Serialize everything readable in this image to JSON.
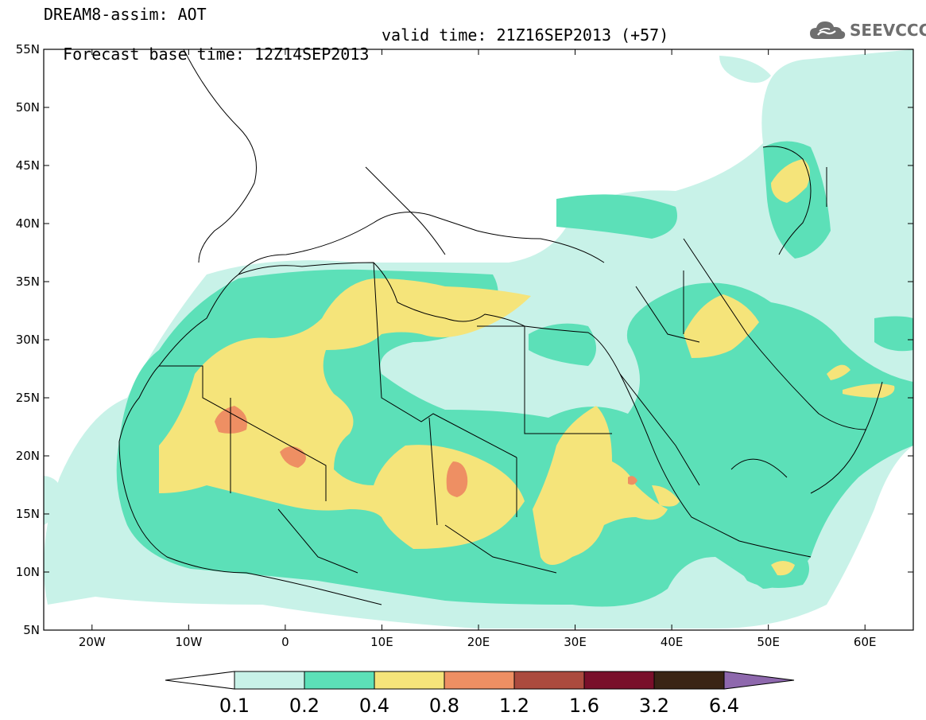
{
  "header": {
    "model_line": "DREAM8-assim: AOT",
    "base_time": "Forecast base time: 12Z14SEP2013",
    "valid_time": "valid time: 21Z16SEP2013 (+57)",
    "logo_text": "SEEVCCC",
    "logo_icon": "cloud-icon"
  },
  "map": {
    "projection": "cylindrical lat-lon",
    "lon_range": [
      -25,
      65
    ],
    "lat_range": [
      5,
      55
    ],
    "lat_ticks": [
      {
        "value": 55,
        "label": "55N"
      },
      {
        "value": 50,
        "label": "50N"
      },
      {
        "value": 45,
        "label": "45N"
      },
      {
        "value": 40,
        "label": "40N"
      },
      {
        "value": 35,
        "label": "35N"
      },
      {
        "value": 30,
        "label": "30N"
      },
      {
        "value": 25,
        "label": "25N"
      },
      {
        "value": 20,
        "label": "20N"
      },
      {
        "value": 15,
        "label": "15N"
      },
      {
        "value": 10,
        "label": "10N"
      },
      {
        "value": 5,
        "label": "5N"
      }
    ],
    "lon_ticks": [
      {
        "value": -20,
        "label": "20W"
      },
      {
        "value": -10,
        "label": "10W"
      },
      {
        "value": 0,
        "label": "0"
      },
      {
        "value": 10,
        "label": "10E"
      },
      {
        "value": 20,
        "label": "20E"
      },
      {
        "value": 30,
        "label": "30E"
      },
      {
        "value": 40,
        "label": "40E"
      },
      {
        "value": 50,
        "label": "50E"
      },
      {
        "value": 60,
        "label": "60E"
      }
    ],
    "field_hotspots": [
      {
        "name": "western-sahara-max",
        "lon": -5.5,
        "lat": 23.5,
        "level": "0.8-1.2"
      },
      {
        "name": "mali-algeria-max",
        "lon": 1,
        "lat": 20,
        "level": "0.8-1.2"
      },
      {
        "name": "chad-max",
        "lon": 17.5,
        "lat": 18,
        "level": "0.8-1.2"
      },
      {
        "name": "sudan-max",
        "lon": 36,
        "lat": 18,
        "level": "0.8-1.2"
      }
    ]
  },
  "colorbar": {
    "levels": [
      "0.1",
      "0.2",
      "0.4",
      "0.8",
      "1.2",
      "1.6",
      "3.2",
      "6.4"
    ],
    "colors": [
      "#c8f2e8",
      "#5ce0b8",
      "#f5e47a",
      "#ee8f63",
      "#ab4a3e",
      "#790f2a",
      "#3a2415",
      "#8e68ad"
    ],
    "under_color": "#ffffff"
  }
}
